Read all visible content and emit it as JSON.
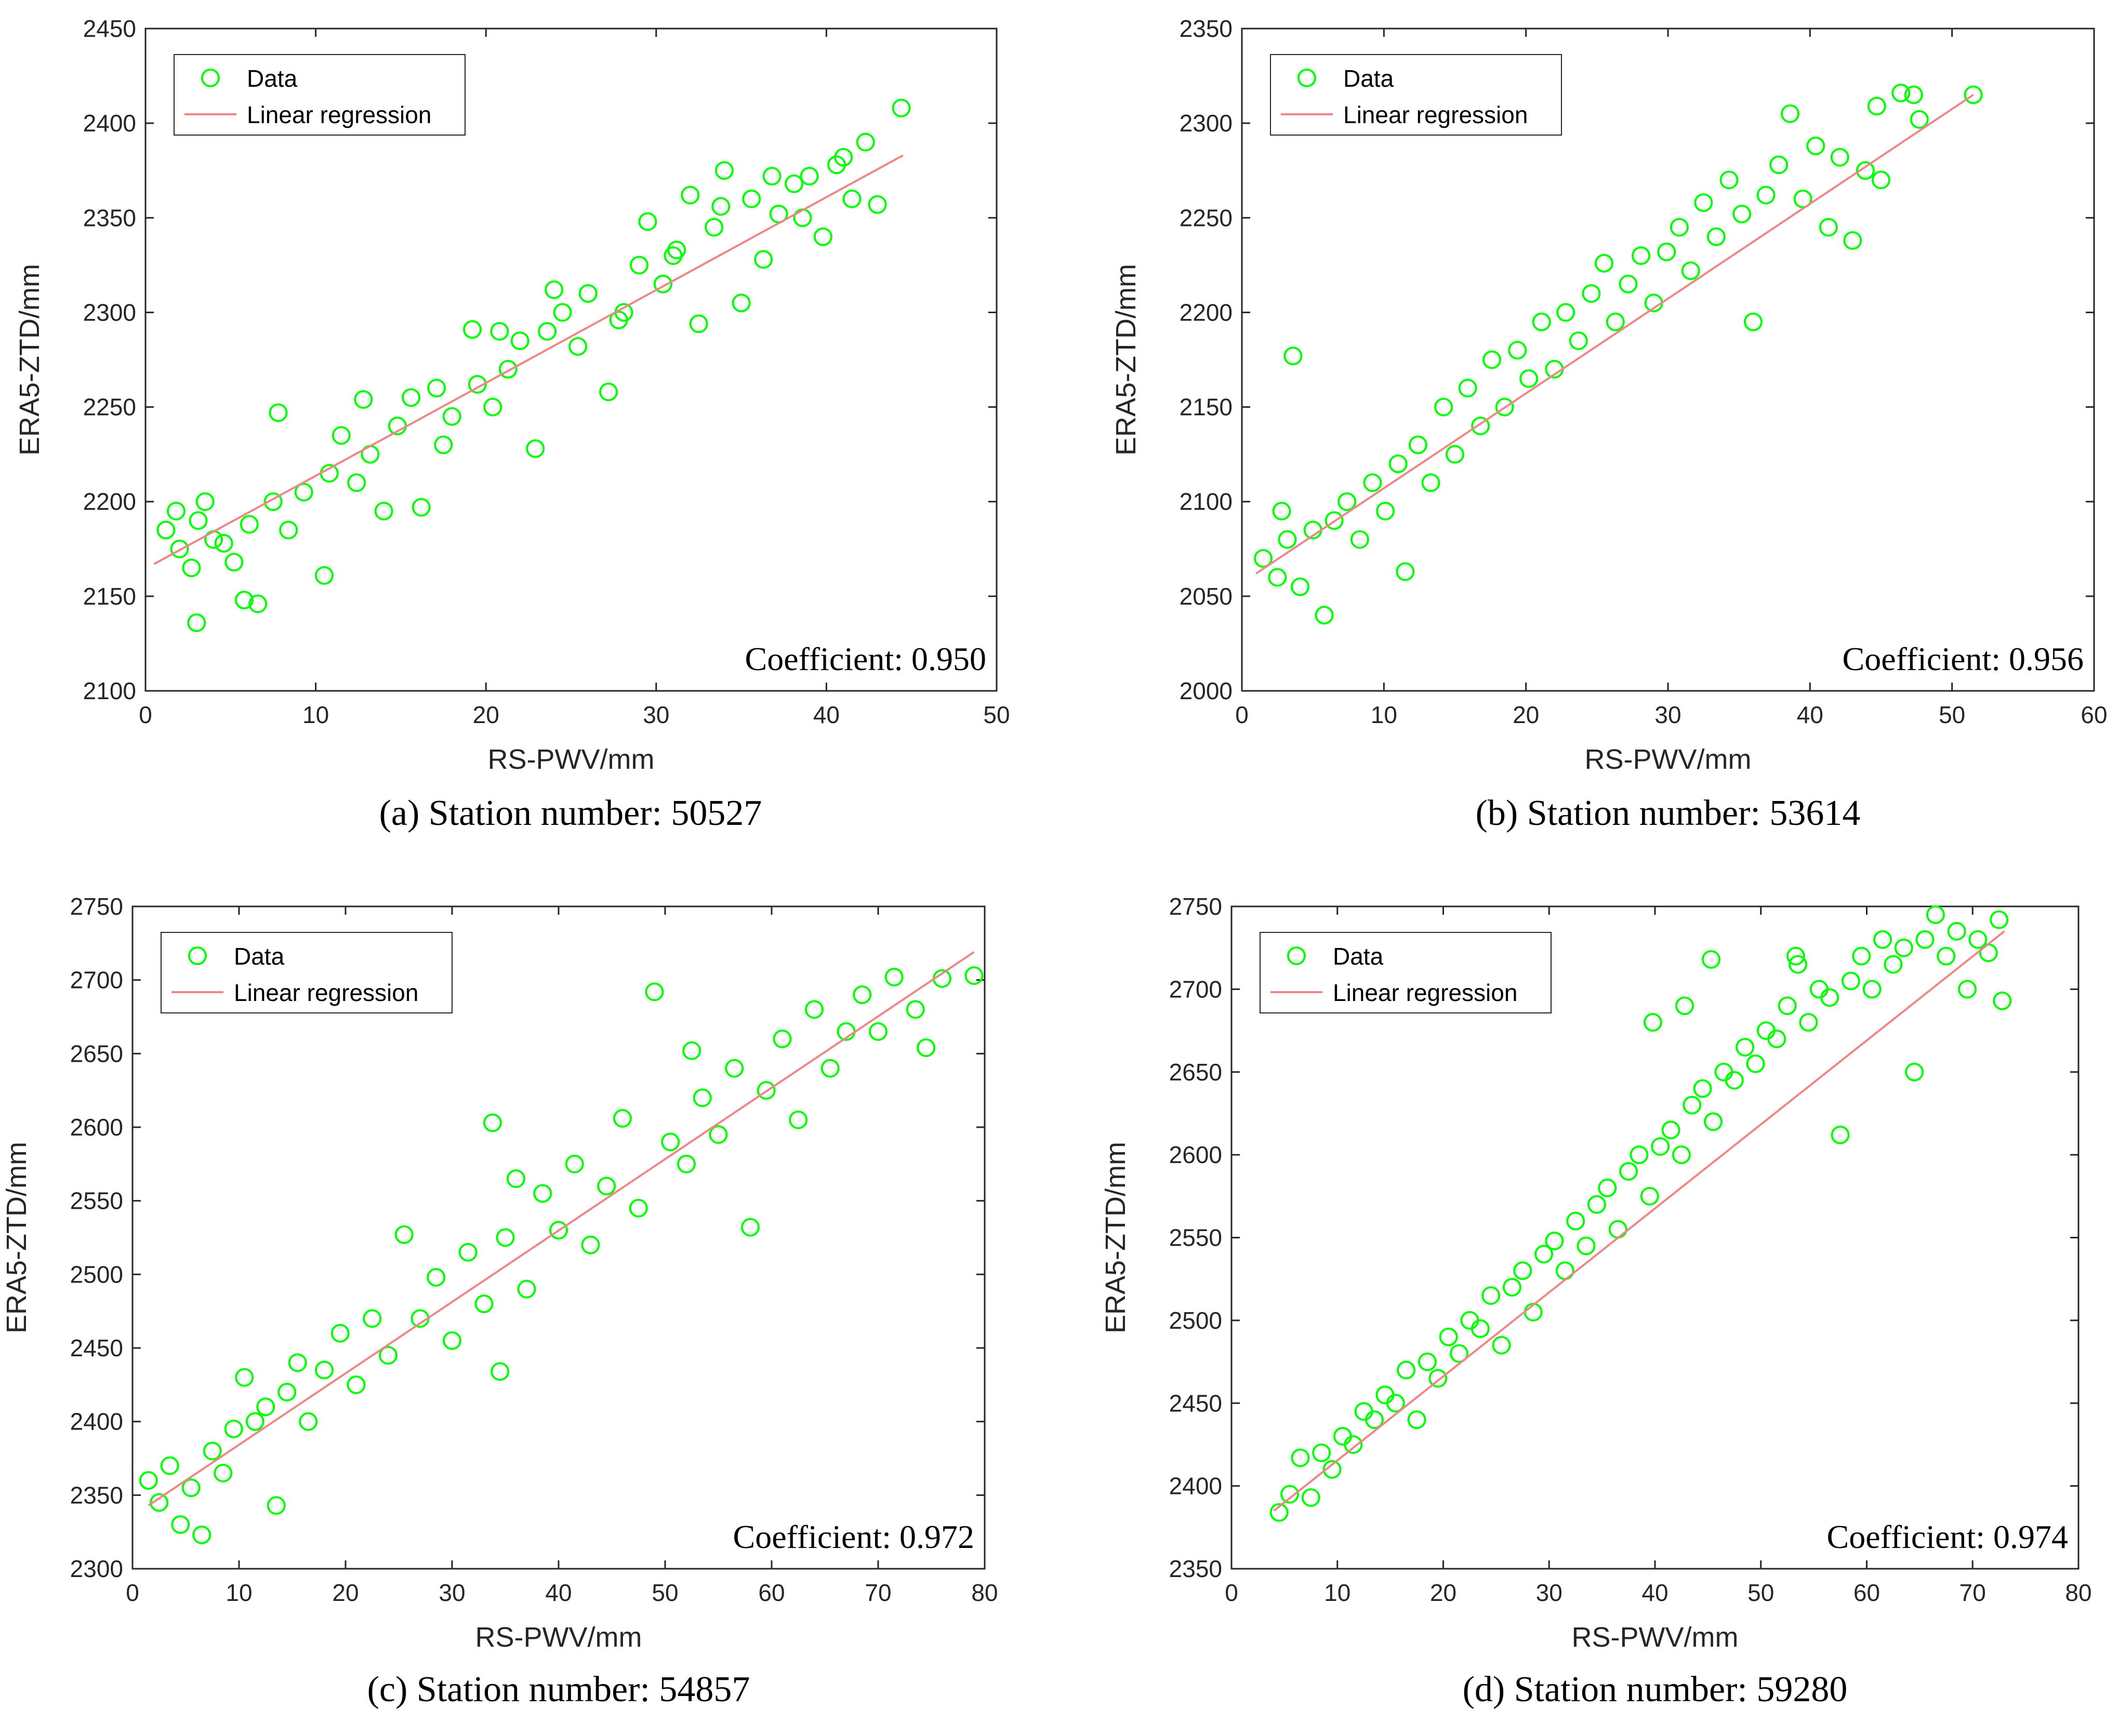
{
  "colors": {
    "data": "#00ff00",
    "regression": "#ee8888",
    "axis": "#262626"
  },
  "chart_data": [
    {
      "type": "scatter",
      "panel": "a",
      "caption": "(a) Station number: 50527",
      "xlabel": "RS-PWV/mm",
      "ylabel": "ERA5-ZTD/mm",
      "xlim": [
        0,
        50
      ],
      "ylim": [
        2100,
        2450
      ],
      "xticks": [
        0,
        10,
        20,
        30,
        40,
        50
      ],
      "yticks": [
        2100,
        2150,
        2200,
        2250,
        2300,
        2350,
        2400,
        2450
      ],
      "legend": [
        "Data",
        "Linear regression"
      ],
      "legend_position": "top-left",
      "coefficient_label": "Coefficient:",
      "coefficient": "0.950",
      "regression": {
        "x": [
          0.5,
          44.5
        ],
        "y": [
          2167,
          2383
        ]
      },
      "points": [
        [
          1.2,
          2185
        ],
        [
          2.0,
          2175
        ],
        [
          3.1,
          2190
        ],
        [
          4.0,
          2180
        ],
        [
          5.2,
          2168
        ],
        [
          1.8,
          2195
        ],
        [
          2.7,
          2165
        ],
        [
          3.5,
          2200
        ],
        [
          4.6,
          2178
        ],
        [
          6.1,
          2188
        ],
        [
          3.0,
          2136
        ],
        [
          5.8,
          2148
        ],
        [
          6.6,
          2146
        ],
        [
          7.5,
          2200
        ],
        [
          8.4,
          2185
        ],
        [
          9.3,
          2205
        ],
        [
          10.5,
          2161
        ],
        [
          10.8,
          2215
        ],
        [
          11.5,
          2235
        ],
        [
          12.4,
          2210
        ],
        [
          13.2,
          2225
        ],
        [
          14.0,
          2195
        ],
        [
          14.8,
          2240
        ],
        [
          15.6,
          2255
        ],
        [
          16.2,
          2197
        ],
        [
          17.1,
          2260
        ],
        [
          18.0,
          2245
        ],
        [
          19.2,
          2291
        ],
        [
          19.5,
          2262
        ],
        [
          20.4,
          2250
        ],
        [
          21.3,
          2270
        ],
        [
          22.0,
          2285
        ],
        [
          22.9,
          2228
        ],
        [
          23.6,
          2290
        ],
        [
          24.5,
          2300
        ],
        [
          25.4,
          2282
        ],
        [
          26.0,
          2310
        ],
        [
          27.2,
          2258
        ],
        [
          28.1,
          2300
        ],
        [
          29.0,
          2325
        ],
        [
          29.5,
          2348
        ],
        [
          30.4,
          2315
        ],
        [
          31.2,
          2333
        ],
        [
          32.0,
          2362
        ],
        [
          32.5,
          2294
        ],
        [
          33.4,
          2345
        ],
        [
          34.0,
          2375
        ],
        [
          35.0,
          2305
        ],
        [
          35.6,
          2360
        ],
        [
          36.3,
          2328
        ],
        [
          37.2,
          2352
        ],
        [
          38.1,
          2368
        ],
        [
          39.0,
          2372
        ],
        [
          39.8,
          2340
        ],
        [
          40.6,
          2378
        ],
        [
          41.5,
          2360
        ],
        [
          42.3,
          2390
        ],
        [
          43.0,
          2357
        ],
        [
          44.4,
          2408
        ],
        [
          7.8,
          2247
        ],
        [
          12.8,
          2254
        ],
        [
          17.5,
          2230
        ],
        [
          20.8,
          2290
        ],
        [
          24.0,
          2312
        ],
        [
          27.8,
          2296
        ],
        [
          31.0,
          2330
        ],
        [
          33.8,
          2356
        ],
        [
          36.8,
          2372
        ],
        [
          38.6,
          2350
        ],
        [
          41.0,
          2382
        ]
      ]
    },
    {
      "type": "scatter",
      "panel": "b",
      "caption": "(b) Station number: 53614",
      "xlabel": "RS-PWV/mm",
      "ylabel": "ERA5-ZTD/mm",
      "xlim": [
        0,
        60
      ],
      "ylim": [
        2000,
        2350
      ],
      "xticks": [
        0,
        10,
        20,
        30,
        40,
        50,
        60
      ],
      "yticks": [
        2000,
        2050,
        2100,
        2150,
        2200,
        2250,
        2300,
        2350
      ],
      "legend": [
        "Data",
        "Linear regression"
      ],
      "legend_position": "top-left",
      "coefficient_label": "Coefficient:",
      "coefficient": "0.956",
      "regression": {
        "x": [
          1.0,
          51.5
        ],
        "y": [
          2062,
          2315
        ]
      },
      "points": [
        [
          1.5,
          2070
        ],
        [
          2.5,
          2060
        ],
        [
          3.2,
          2080
        ],
        [
          4.1,
          2055
        ],
        [
          5.0,
          2085
        ],
        [
          5.8,
          2040
        ],
        [
          2.8,
          2095
        ],
        [
          3.6,
          2177
        ],
        [
          6.5,
          2090
        ],
        [
          7.4,
          2100
        ],
        [
          8.3,
          2080
        ],
        [
          9.2,
          2110
        ],
        [
          10.1,
          2095
        ],
        [
          11.0,
          2120
        ],
        [
          11.5,
          2063
        ],
        [
          12.4,
          2130
        ],
        [
          13.3,
          2110
        ],
        [
          14.2,
          2150
        ],
        [
          15.0,
          2125
        ],
        [
          15.9,
          2160
        ],
        [
          16.8,
          2140
        ],
        [
          17.6,
          2175
        ],
        [
          18.5,
          2150
        ],
        [
          19.4,
          2180
        ],
        [
          20.2,
          2165
        ],
        [
          21.1,
          2195
        ],
        [
          22.0,
          2170
        ],
        [
          22.8,
          2200
        ],
        [
          23.7,
          2185
        ],
        [
          24.6,
          2210
        ],
        [
          25.5,
          2226
        ],
        [
          26.3,
          2195
        ],
        [
          27.2,
          2215
        ],
        [
          28.1,
          2230
        ],
        [
          29.0,
          2205
        ],
        [
          29.9,
          2232
        ],
        [
          30.8,
          2245
        ],
        [
          31.6,
          2222
        ],
        [
          32.5,
          2258
        ],
        [
          33.4,
          2240
        ],
        [
          34.3,
          2270
        ],
        [
          35.2,
          2252
        ],
        [
          36.0,
          2195
        ],
        [
          36.9,
          2262
        ],
        [
          37.8,
          2278
        ],
        [
          38.6,
          2305
        ],
        [
          39.5,
          2260
        ],
        [
          40.4,
          2288
        ],
        [
          41.3,
          2245
        ],
        [
          42.1,
          2282
        ],
        [
          43.0,
          2238
        ],
        [
          43.9,
          2275
        ],
        [
          44.7,
          2309
        ],
        [
          45.0,
          2270
        ],
        [
          46.4,
          2316
        ],
        [
          47.3,
          2315
        ],
        [
          47.7,
          2302
        ],
        [
          51.5,
          2315
        ]
      ]
    },
    {
      "type": "scatter",
      "panel": "c",
      "caption": "(c) Station number: 54857",
      "xlabel": "RS-PWV/mm",
      "ylabel": "ERA5-ZTD/mm",
      "xlim": [
        0,
        80
      ],
      "ylim": [
        2300,
        2750
      ],
      "xticks": [
        0,
        10,
        20,
        30,
        40,
        50,
        60,
        70,
        80
      ],
      "yticks": [
        2300,
        2350,
        2400,
        2450,
        2500,
        2550,
        2600,
        2650,
        2700,
        2750
      ],
      "legend": [
        "Data",
        "Linear regression"
      ],
      "legend_position": "top-left",
      "coefficient_label": "Coefficient:",
      "coefficient": "0.972",
      "regression": {
        "x": [
          1.5,
          79.0
        ],
        "y": [
          2343,
          2719
        ]
      },
      "points": [
        [
          1.5,
          2360
        ],
        [
          2.5,
          2345
        ],
        [
          3.5,
          2370
        ],
        [
          4.5,
          2330
        ],
        [
          5.5,
          2355
        ],
        [
          6.5,
          2323
        ],
        [
          7.5,
          2380
        ],
        [
          8.5,
          2365
        ],
        [
          9.5,
          2395
        ],
        [
          10.5,
          2430
        ],
        [
          11.5,
          2400
        ],
        [
          12.5,
          2410
        ],
        [
          13.5,
          2343
        ],
        [
          14.5,
          2420
        ],
        [
          15.5,
          2440
        ],
        [
          16.5,
          2400
        ],
        [
          18.0,
          2435
        ],
        [
          19.5,
          2460
        ],
        [
          21.0,
          2425
        ],
        [
          22.5,
          2470
        ],
        [
          24.0,
          2445
        ],
        [
          25.5,
          2527
        ],
        [
          27.0,
          2470
        ],
        [
          28.5,
          2498
        ],
        [
          30.0,
          2455
        ],
        [
          31.5,
          2515
        ],
        [
          33.0,
          2480
        ],
        [
          33.8,
          2603
        ],
        [
          35.0,
          2525
        ],
        [
          36.0,
          2565
        ],
        [
          37.0,
          2490
        ],
        [
          38.5,
          2555
        ],
        [
          40.0,
          2530
        ],
        [
          41.5,
          2575
        ],
        [
          43.0,
          2520
        ],
        [
          44.5,
          2560
        ],
        [
          46.0,
          2606
        ],
        [
          47.5,
          2545
        ],
        [
          49.0,
          2692
        ],
        [
          50.5,
          2590
        ],
        [
          52.0,
          2575
        ],
        [
          53.5,
          2620
        ],
        [
          55.0,
          2595
        ],
        [
          56.5,
          2640
        ],
        [
          58.0,
          2532
        ],
        [
          59.5,
          2625
        ],
        [
          61.0,
          2660
        ],
        [
          62.5,
          2605
        ],
        [
          64.0,
          2680
        ],
        [
          65.5,
          2640
        ],
        [
          67.0,
          2665
        ],
        [
          68.5,
          2690
        ],
        [
          70.0,
          2665
        ],
        [
          71.5,
          2702
        ],
        [
          73.5,
          2680
        ],
        [
          74.5,
          2654
        ],
        [
          76.0,
          2701
        ],
        [
          79.0,
          2703
        ],
        [
          34.5,
          2434
        ],
        [
          52.5,
          2652
        ]
      ]
    },
    {
      "type": "scatter",
      "panel": "d",
      "caption": "(d) Station number: 59280",
      "xlabel": "RS-PWV/mm",
      "ylabel": "ERA5-ZTD/mm",
      "xlim": [
        0,
        80
      ],
      "ylim": [
        2350,
        2750
      ],
      "xticks": [
        0,
        10,
        20,
        30,
        40,
        50,
        60,
        70,
        80
      ],
      "yticks": [
        2350,
        2400,
        2450,
        2500,
        2550,
        2600,
        2650,
        2700,
        2750
      ],
      "legend": [
        "Data",
        "Linear regression"
      ],
      "legend_position": "top-left",
      "coefficient_label": "Coefficient:",
      "coefficient": "0.974",
      "regression": {
        "x": [
          4.0,
          73.0
        ],
        "y": [
          2385,
          2735
        ]
      },
      "points": [
        [
          4.5,
          2384
        ],
        [
          5.5,
          2395
        ],
        [
          6.5,
          2417
        ],
        [
          7.5,
          2393
        ],
        [
          8.5,
          2420
        ],
        [
          9.5,
          2410
        ],
        [
          10.5,
          2430
        ],
        [
          11.5,
          2425
        ],
        [
          12.5,
          2445
        ],
        [
          13.5,
          2440
        ],
        [
          14.5,
          2455
        ],
        [
          15.5,
          2450
        ],
        [
          16.5,
          2470
        ],
        [
          17.5,
          2440
        ],
        [
          18.5,
          2475
        ],
        [
          19.5,
          2465
        ],
        [
          20.5,
          2490
        ],
        [
          21.5,
          2480
        ],
        [
          22.5,
          2500
        ],
        [
          23.5,
          2495
        ],
        [
          24.5,
          2515
        ],
        [
          25.5,
          2485
        ],
        [
          26.5,
          2520
        ],
        [
          27.5,
          2530
        ],
        [
          28.5,
          2505
        ],
        [
          29.5,
          2540
        ],
        [
          30.5,
          2548
        ],
        [
          31.5,
          2530
        ],
        [
          32.5,
          2560
        ],
        [
          33.5,
          2545
        ],
        [
          34.5,
          2570
        ],
        [
          35.5,
          2580
        ],
        [
          36.5,
          2555
        ],
        [
          37.5,
          2590
        ],
        [
          38.5,
          2600
        ],
        [
          39.5,
          2575
        ],
        [
          39.8,
          2680
        ],
        [
          40.5,
          2605
        ],
        [
          41.5,
          2615
        ],
        [
          42.5,
          2600
        ],
        [
          42.8,
          2690
        ],
        [
          43.5,
          2630
        ],
        [
          44.5,
          2640
        ],
        [
          45.3,
          2718
        ],
        [
          45.5,
          2620
        ],
        [
          46.5,
          2650
        ],
        [
          47.5,
          2645
        ],
        [
          48.5,
          2665
        ],
        [
          49.5,
          2655
        ],
        [
          50.5,
          2675
        ],
        [
          51.5,
          2670
        ],
        [
          52.5,
          2690
        ],
        [
          53.5,
          2715
        ],
        [
          54.5,
          2680
        ],
        [
          55.5,
          2700
        ],
        [
          56.5,
          2695
        ],
        [
          57.5,
          2612
        ],
        [
          58.5,
          2705
        ],
        [
          59.5,
          2720
        ],
        [
          60.5,
          2700
        ],
        [
          61.5,
          2730
        ],
        [
          62.5,
          2715
        ],
        [
          63.5,
          2725
        ],
        [
          64.5,
          2650
        ],
        [
          65.5,
          2730
        ],
        [
          66.5,
          2745
        ],
        [
          67.5,
          2720
        ],
        [
          68.5,
          2735
        ],
        [
          69.5,
          2700
        ],
        [
          70.5,
          2730
        ],
        [
          71.5,
          2722
        ],
        [
          72.5,
          2742
        ],
        [
          72.8,
          2693
        ],
        [
          53.3,
          2720
        ]
      ]
    }
  ]
}
